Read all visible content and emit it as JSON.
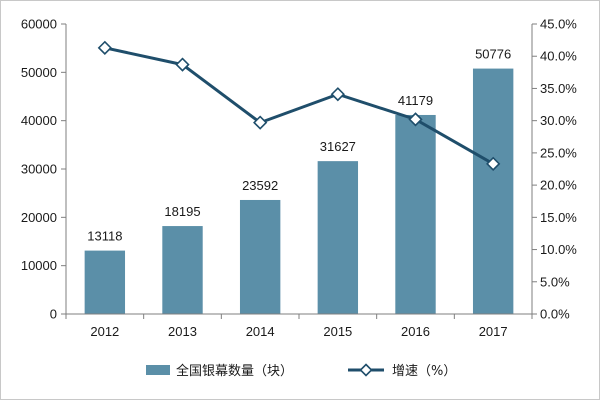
{
  "chart_data": {
    "type": "bar+line",
    "categories": [
      "2012",
      "2013",
      "2014",
      "2015",
      "2016",
      "2017"
    ],
    "series": [
      {
        "name": "全国银幕数量（块）",
        "type": "bar",
        "axis": "left",
        "values": [
          13118,
          18195,
          23592,
          31627,
          41179,
          50776
        ],
        "data_labels": [
          "13118",
          "18195",
          "23592",
          "31627",
          "41179",
          "50776"
        ],
        "color": "#5b8fa8"
      },
      {
        "name": "增速（%）",
        "type": "line",
        "axis": "right",
        "marker": "diamond-open",
        "values": [
          41.3,
          38.7,
          29.7,
          34.1,
          30.2,
          23.3
        ],
        "color": "#1f4e6b"
      }
    ],
    "y_left": {
      "min": 0,
      "max": 60000,
      "ticks": [
        0,
        10000,
        20000,
        30000,
        40000,
        50000,
        60000
      ],
      "tick_labels": [
        "0",
        "10000",
        "20000",
        "30000",
        "40000",
        "50000",
        "60000"
      ]
    },
    "y_right": {
      "min": 0,
      "max": 45,
      "ticks": [
        0,
        5,
        10,
        15,
        20,
        25,
        30,
        35,
        40,
        45
      ],
      "tick_labels": [
        "0.0%",
        "5.0%",
        "10.0%",
        "15.0%",
        "20.0%",
        "25.0%",
        "30.0%",
        "35.0%",
        "40.0%",
        "45.0%"
      ]
    },
    "grid": false,
    "legend": {
      "position": "bottom",
      "entries": [
        "全国银幕数量（块）",
        "增速（%）"
      ]
    }
  }
}
